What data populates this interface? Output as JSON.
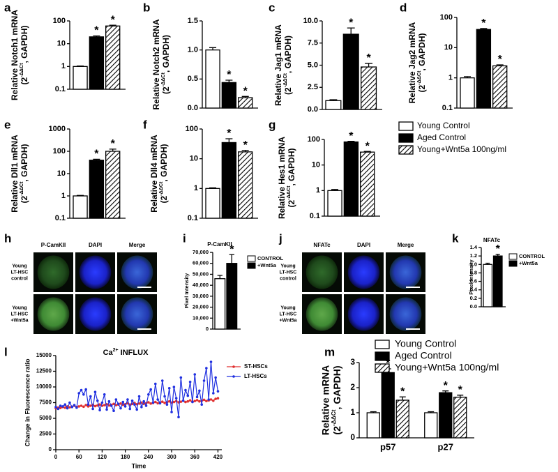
{
  "chart_data": [
    {
      "type": "bar",
      "panel": "a",
      "ylabel": "Relative Notch1 mRNA",
      "ylabel_unit": [
        "(2",
        "-ΔΔCt",
        ", GAPDH)"
      ],
      "log_y": true,
      "ylim": [
        0.1,
        100
      ],
      "yticks": [
        0.1,
        1,
        10,
        100
      ],
      "values": [
        1,
        20,
        60
      ],
      "errors": [
        0.05,
        2,
        5
      ],
      "significance": [
        null,
        "*",
        "*"
      ]
    },
    {
      "type": "bar",
      "panel": "b",
      "ylabel": "Relative Notch2 mRNA",
      "ylabel_unit": [
        "(2",
        "-ΔΔCt",
        ", GAPDH)"
      ],
      "log_y": false,
      "ylim": [
        0,
        1.5
      ],
      "yticks": [
        {
          "value": 0,
          "label": "0.0"
        },
        0.5,
        {
          "value": 1,
          "label": "1.0"
        },
        1.5
      ],
      "values": [
        1.0,
        0.44,
        0.18
      ],
      "errors": [
        0.04,
        0.04,
        0.02
      ],
      "significance": [
        null,
        "*",
        "*"
      ]
    },
    {
      "type": "bar",
      "panel": "c",
      "ylabel": "Relative Jag1 mRNA",
      "ylabel_unit": [
        "(2",
        "-ΔΔCt",
        ", GAPDH)"
      ],
      "log_y": false,
      "ylim": [
        0,
        10
      ],
      "yticks": [
        {
          "value": 0,
          "label": "0.0"
        },
        2.5,
        {
          "value": 5,
          "label": "5.0"
        },
        7.5,
        {
          "value": 10,
          "label": "10.0"
        }
      ],
      "values": [
        1,
        8.5,
        4.8
      ],
      "errors": [
        0.1,
        0.7,
        0.4
      ],
      "significance": [
        null,
        "*",
        "*"
      ]
    },
    {
      "type": "bar",
      "panel": "d",
      "ylabel": "Relative Jag2 mRNA",
      "ylabel_unit": [
        "(2",
        "-ΔΔCt",
        ", GAPDH)"
      ],
      "log_y": true,
      "ylim": [
        0.1,
        100
      ],
      "yticks": [
        0.1,
        1,
        10,
        100
      ],
      "values": [
        1,
        40,
        2.5
      ],
      "errors": [
        0.1,
        3,
        0.2
      ],
      "significance": [
        null,
        "*",
        "*"
      ]
    },
    {
      "type": "bar",
      "panel": "e",
      "ylabel": "Relative Dll1 mRNA",
      "ylabel_unit": [
        "(2",
        "-ΔΔCt",
        ", GAPDH)"
      ],
      "log_y": true,
      "ylim": [
        0.1,
        1000
      ],
      "yticks": [
        0.1,
        1,
        10,
        100,
        1000
      ],
      "values": [
        1,
        40,
        100
      ],
      "errors": [
        0.05,
        4,
        25
      ],
      "significance": [
        null,
        "*",
        "*"
      ]
    },
    {
      "type": "bar",
      "panel": "f",
      "ylabel": "Relative Dll4 mRNA",
      "ylabel_unit": [
        "(2",
        "-ΔΔCt",
        ", GAPDH)"
      ],
      "log_y": true,
      "ylim": [
        0.1,
        100
      ],
      "yticks": [
        0.1,
        1,
        10,
        100
      ],
      "values": [
        1,
        35,
        17
      ],
      "errors": [
        0.05,
        12,
        2
      ],
      "significance": [
        null,
        "*",
        "*"
      ]
    },
    {
      "type": "bar",
      "panel": "g",
      "ylabel": "Relative Hes1 mRNA",
      "ylabel_unit": [
        "(2",
        "-ΔΔCt",
        ", GAPDH)"
      ],
      "log_y": true,
      "ylim": [
        0.1,
        100
      ],
      "yticks": [
        0.1,
        1,
        10,
        100
      ],
      "values": [
        1,
        80,
        32
      ],
      "errors": [
        0.1,
        5,
        2
      ],
      "significance": [
        null,
        "*",
        "*"
      ]
    },
    {
      "type": "legend",
      "series": [
        {
          "name": "Young Control",
          "color": "#ffffff"
        },
        {
          "name": "Aged Control",
          "color": "#000000"
        },
        {
          "name": "Young+Wnt5a 100ng/ml",
          "color": "#ffffff",
          "pattern": "hatch"
        }
      ]
    },
    {
      "type": "image",
      "panel": "h",
      "columns": [
        "P-CamKII",
        "DAPI",
        "Merge"
      ],
      "rows": [
        [
          "Young",
          "LT-HSC",
          "control"
        ],
        [
          "Young",
          "LT-HSC",
          "+Wnt5a"
        ]
      ]
    },
    {
      "type": "bar",
      "panel": "i",
      "title": "P-CamKII",
      "ylabel": "Pixel Intensity",
      "log_y": false,
      "ylim": [
        0,
        70000
      ],
      "yticks": [
        0,
        {
          "value": 10000,
          "label": "10,000"
        },
        {
          "value": 20000,
          "label": "20,000"
        },
        {
          "value": 30000,
          "label": "30,000"
        },
        {
          "value": 40000,
          "label": "40,000"
        },
        {
          "value": 50000,
          "label": "50,000"
        },
        {
          "value": 60000,
          "label": "60,000"
        },
        {
          "value": 70000,
          "label": "70,000"
        }
      ],
      "values": [
        46000,
        60000
      ],
      "errors": [
        3000,
        8000
      ],
      "significance": [
        null,
        "*"
      ],
      "legend": [
        {
          "name": "CONTROL",
          "color": "#ffffff"
        },
        {
          "name": "+Wnt5a",
          "color": "#000000"
        }
      ]
    },
    {
      "type": "image",
      "panel": "j",
      "columns": [
        "NFATc",
        "DAPI",
        "Merge"
      ],
      "rows": [
        [
          "Young",
          "LT-HSC",
          "control"
        ],
        [
          "Young",
          "LT-HSC",
          "+Wnt5a"
        ]
      ]
    },
    {
      "type": "bar",
      "panel": "k",
      "title": "NFATc",
      "ylabel": "Pixel Intensity",
      "log_y": false,
      "ylim": [
        0,
        1.4
      ],
      "yticks": [
        {
          "value": 0,
          "label": "0.0"
        },
        0.2,
        0.4,
        0.6,
        0.8,
        {
          "value": 1,
          "label": "1.0"
        },
        1.2,
        1.4
      ],
      "values": [
        1.0,
        1.2
      ],
      "errors": [
        0.03,
        0.04
      ],
      "significance": [
        null,
        "*"
      ],
      "legend": [
        {
          "name": "CONTROL",
          "color": "#ffffff"
        },
        {
          "name": "+Wnt5a",
          "color": "#000000"
        }
      ]
    },
    {
      "type": "line",
      "panel": "l",
      "title": [
        "Ca",
        "2+",
        " INFLUX"
      ],
      "xlabel": "Time",
      "ylabel": "Change in Fluorescence ratio",
      "x": [
        0,
        6,
        12,
        18,
        24,
        30,
        36,
        42,
        48,
        54,
        60,
        66,
        72,
        78,
        84,
        90,
        96,
        102,
        108,
        114,
        120,
        126,
        132,
        138,
        144,
        150,
        156,
        162,
        168,
        174,
        180,
        186,
        192,
        198,
        204,
        210,
        216,
        222,
        228,
        234,
        240,
        246,
        252,
        258,
        264,
        270,
        276,
        282,
        288,
        294,
        300,
        306,
        312,
        318,
        324,
        330,
        336,
        342,
        348,
        354,
        360,
        366,
        372,
        378,
        384,
        390,
        396,
        402,
        408,
        414,
        420
      ],
      "xlim": [
        0,
        430
      ],
      "xticks": [
        0,
        60,
        120,
        180,
        240,
        300,
        360,
        420
      ],
      "ylim": [
        0,
        15000
      ],
      "yticks": [
        0,
        2500,
        5000,
        7500,
        10000,
        12500,
        15000
      ],
      "series": [
        {
          "name": "ST-HSCs",
          "color": "#e03030",
          "values": [
            6600,
            6700,
            6650,
            6800,
            6700,
            6900,
            6750,
            6850,
            7000,
            6800,
            6900,
            7000,
            6850,
            7100,
            6900,
            7000,
            7150,
            6950,
            7050,
            7200,
            7000,
            7100,
            7250,
            7050,
            7150,
            7300,
            7100,
            7200,
            7350,
            7150,
            7250,
            7400,
            7200,
            7300,
            7450,
            7250,
            7350,
            7500,
            7300,
            7400,
            7550,
            7350,
            7450,
            7600,
            7400,
            7500,
            7650,
            7450,
            7550,
            7700,
            7500,
            7600,
            7750,
            7550,
            7650,
            7800,
            7600,
            7700,
            7850,
            7650,
            7750,
            7900,
            7700,
            7800,
            7950,
            7750,
            7850,
            8000,
            7800,
            8100,
            8200
          ]
        },
        {
          "name": "LT-HSCs",
          "color": "#2030e0",
          "values": [
            6800,
            6500,
            7000,
            6900,
            7200,
            6600,
            7500,
            6800,
            7100,
            6700,
            9000,
            9500,
            8800,
            9600,
            7200,
            8500,
            6500,
            9200,
            7800,
            6300,
            7500,
            8800,
            6400,
            7700,
            7000,
            6200,
            8000,
            7300,
            6600,
            7600,
            6900,
            8000,
            6500,
            7800,
            7200,
            6400,
            8500,
            6800,
            7700,
            7000,
            8800,
            9600,
            7500,
            10500,
            8000,
            7400,
            11000,
            8500,
            7200,
            9800,
            6000,
            10000,
            8200,
            5200,
            11500,
            7800,
            9500,
            8600,
            10800,
            7600,
            12000,
            8400,
            9400,
            7200,
            11000,
            13000,
            8000,
            14000,
            9000,
            11500,
            9300
          ]
        }
      ]
    },
    {
      "type": "bar",
      "panel": "m",
      "ylabel": "Relative mRNA",
      "ylabel_unit": [
        "(2",
        "-ΔΔCt",
        ", GAPDH)"
      ],
      "log_y": false,
      "ylim": [
        0,
        3
      ],
      "yticks": [
        0,
        1,
        2,
        3
      ],
      "categories": [
        "p57",
        "p27"
      ],
      "series": [
        {
          "name": "Young Control",
          "color": "#ffffff",
          "values": [
            1.0,
            1.0
          ],
          "errors": [
            0.04,
            0.04
          ],
          "significance": [
            null,
            null
          ]
        },
        {
          "name": "Aged Control",
          "color": "#000000",
          "values": [
            2.6,
            1.8
          ],
          "errors": [
            0.15,
            0.07
          ],
          "significance": [
            "*",
            "*"
          ]
        },
        {
          "name": "Young+Wnt5a 100ng/ml",
          "color": "#ffffff",
          "pattern": "hatch",
          "values": [
            1.5,
            1.62
          ],
          "errors": [
            0.13,
            0.08
          ],
          "significance": [
            "*",
            "*"
          ]
        }
      ]
    }
  ]
}
